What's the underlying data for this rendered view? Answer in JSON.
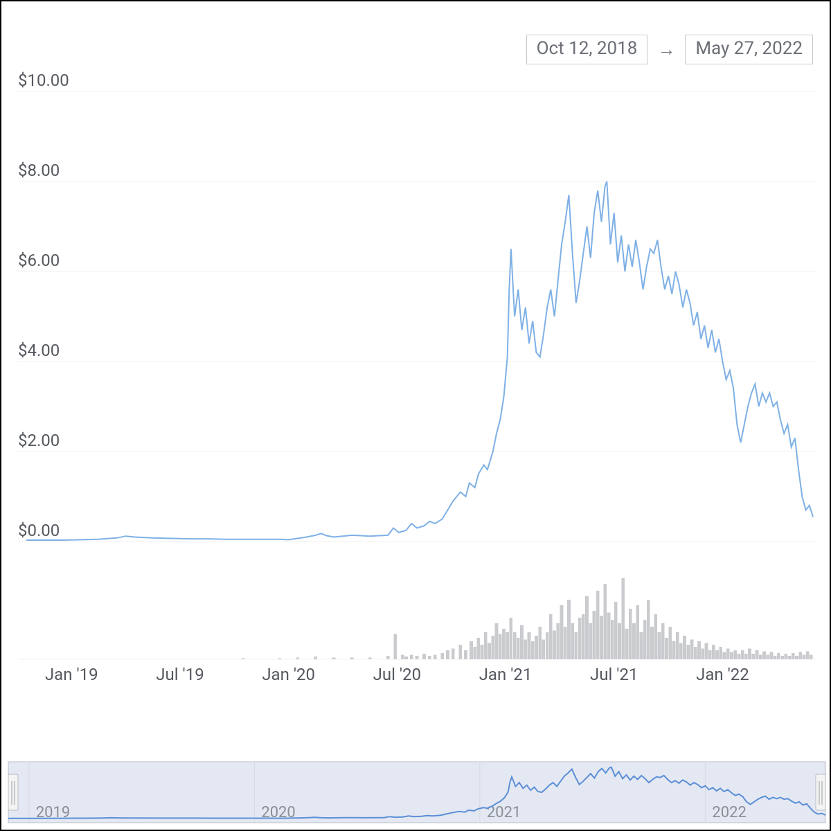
{
  "date_range": {
    "start": "Oct 12, 2018",
    "end": "May 27, 2022"
  },
  "colors": {
    "line": "#7eb0e6",
    "mini_line": "#5b8fd6",
    "grid": "#f0f0f0",
    "axis_text": "#54585e",
    "volume": "#c9cbce",
    "nav_mask": "#b7c3e0",
    "nav_mask_opacity": 0.38,
    "nav_border": "#b9bcc0",
    "nav_year_text": "#8a8e95",
    "background": "#ffffff"
  },
  "price_chart": {
    "type": "line",
    "ylim": [
      0,
      10
    ],
    "ytick_step": 2,
    "ytick_prefix": "$",
    "ytick_decimals": 2,
    "yticks": [
      0,
      2,
      4,
      6,
      8,
      10
    ],
    "x_start": 0,
    "x_end": 43.5,
    "xticks": [
      {
        "x": 2.5,
        "label": "Jan '19"
      },
      {
        "x": 8.5,
        "label": "Jul '19"
      },
      {
        "x": 14.5,
        "label": "Jan '20"
      },
      {
        "x": 20.5,
        "label": "Jul '20"
      },
      {
        "x": 26.5,
        "label": "Jan '21"
      },
      {
        "x": 32.5,
        "label": "Jul '21"
      },
      {
        "x": 38.5,
        "label": "Jan '22"
      }
    ],
    "series": [
      [
        0,
        0.03
      ],
      [
        1,
        0.03
      ],
      [
        2,
        0.03
      ],
      [
        3,
        0.04
      ],
      [
        4,
        0.05
      ],
      [
        5,
        0.08
      ],
      [
        5.5,
        0.12
      ],
      [
        6,
        0.1
      ],
      [
        6.5,
        0.09
      ],
      [
        7,
        0.08
      ],
      [
        8,
        0.07
      ],
      [
        9,
        0.06
      ],
      [
        10,
        0.06
      ],
      [
        11,
        0.05
      ],
      [
        12,
        0.05
      ],
      [
        13,
        0.05
      ],
      [
        14,
        0.05
      ],
      [
        14.5,
        0.04
      ],
      [
        15,
        0.07
      ],
      [
        15.5,
        0.1
      ],
      [
        16,
        0.14
      ],
      [
        16.3,
        0.18
      ],
      [
        16.6,
        0.13
      ],
      [
        17,
        0.1
      ],
      [
        17.5,
        0.12
      ],
      [
        18,
        0.14
      ],
      [
        18.5,
        0.13
      ],
      [
        19,
        0.12
      ],
      [
        19.5,
        0.13
      ],
      [
        20,
        0.14
      ],
      [
        20.3,
        0.3
      ],
      [
        20.6,
        0.2
      ],
      [
        21,
        0.25
      ],
      [
        21.3,
        0.4
      ],
      [
        21.6,
        0.3
      ],
      [
        22,
        0.35
      ],
      [
        22.3,
        0.45
      ],
      [
        22.6,
        0.4
      ],
      [
        23,
        0.5
      ],
      [
        23.3,
        0.7
      ],
      [
        23.6,
        0.9
      ],
      [
        24,
        1.1
      ],
      [
        24.3,
        1.0
      ],
      [
        24.5,
        1.3
      ],
      [
        24.8,
        1.2
      ],
      [
        25,
        1.5
      ],
      [
        25.3,
        1.7
      ],
      [
        25.5,
        1.6
      ],
      [
        25.8,
        2.0
      ],
      [
        26,
        2.4
      ],
      [
        26.2,
        2.7
      ],
      [
        26.4,
        3.2
      ],
      [
        26.6,
        4.1
      ],
      [
        26.7,
        5.6
      ],
      [
        26.8,
        6.5
      ],
      [
        27.0,
        5.0
      ],
      [
        27.2,
        5.6
      ],
      [
        27.4,
        4.7
      ],
      [
        27.6,
        5.2
      ],
      [
        27.8,
        4.4
      ],
      [
        28,
        4.9
      ],
      [
        28.2,
        4.2
      ],
      [
        28.4,
        4.1
      ],
      [
        28.6,
        4.6
      ],
      [
        28.8,
        5.2
      ],
      [
        29.0,
        5.6
      ],
      [
        29.2,
        5.0
      ],
      [
        29.4,
        5.8
      ],
      [
        29.6,
        6.6
      ],
      [
        29.8,
        7.1
      ],
      [
        30.0,
        7.7
      ],
      [
        30.2,
        6.4
      ],
      [
        30.4,
        5.3
      ],
      [
        30.6,
        5.8
      ],
      [
        30.8,
        6.4
      ],
      [
        31.0,
        7.0
      ],
      [
        31.2,
        6.3
      ],
      [
        31.4,
        7.3
      ],
      [
        31.6,
        7.8
      ],
      [
        31.8,
        7.1
      ],
      [
        32.0,
        7.9
      ],
      [
        32.1,
        8.0
      ],
      [
        32.3,
        6.6
      ],
      [
        32.5,
        7.3
      ],
      [
        32.7,
        6.2
      ],
      [
        32.9,
        6.8
      ],
      [
        33.1,
        6.0
      ],
      [
        33.3,
        6.6
      ],
      [
        33.5,
        6.1
      ],
      [
        33.7,
        6.7
      ],
      [
        33.9,
        6.2
      ],
      [
        34.1,
        5.6
      ],
      [
        34.3,
        6.1
      ],
      [
        34.5,
        6.5
      ],
      [
        34.7,
        6.4
      ],
      [
        34.9,
        6.7
      ],
      [
        35.1,
        6.1
      ],
      [
        35.3,
        5.6
      ],
      [
        35.5,
        5.9
      ],
      [
        35.7,
        5.5
      ],
      [
        35.9,
        6.0
      ],
      [
        36.1,
        5.7
      ],
      [
        36.3,
        5.2
      ],
      [
        36.5,
        5.6
      ],
      [
        36.7,
        5.3
      ],
      [
        36.9,
        4.8
      ],
      [
        37.1,
        5.1
      ],
      [
        37.3,
        4.5
      ],
      [
        37.5,
        4.8
      ],
      [
        37.7,
        4.3
      ],
      [
        37.9,
        4.7
      ],
      [
        38.1,
        4.2
      ],
      [
        38.3,
        4.5
      ],
      [
        38.5,
        4.0
      ],
      [
        38.7,
        3.6
      ],
      [
        38.9,
        3.8
      ],
      [
        39.1,
        3.4
      ],
      [
        39.3,
        2.6
      ],
      [
        39.5,
        2.2
      ],
      [
        39.7,
        2.6
      ],
      [
        39.9,
        3.0
      ],
      [
        40.1,
        3.3
      ],
      [
        40.3,
        3.5
      ],
      [
        40.5,
        3.0
      ],
      [
        40.7,
        3.3
      ],
      [
        40.9,
        3.1
      ],
      [
        41.1,
        3.3
      ],
      [
        41.3,
        3.0
      ],
      [
        41.5,
        3.1
      ],
      [
        41.7,
        2.7
      ],
      [
        41.9,
        2.4
      ],
      [
        42.1,
        2.6
      ],
      [
        42.3,
        2.1
      ],
      [
        42.5,
        2.3
      ],
      [
        42.7,
        1.6
      ],
      [
        42.9,
        1.0
      ],
      [
        43.1,
        0.7
      ],
      [
        43.3,
        0.8
      ],
      [
        43.5,
        0.55
      ]
    ],
    "line_color": "#7eb0e6",
    "line_width": 2
  },
  "volume_chart": {
    "type": "bar",
    "ylim": [
      0,
      1
    ],
    "bar_color": "#c9cbce",
    "bars": [
      [
        12,
        0.01
      ],
      [
        14,
        0.01
      ],
      [
        15,
        0.02
      ],
      [
        16,
        0.03
      ],
      [
        17,
        0.02
      ],
      [
        18,
        0.02
      ],
      [
        19,
        0.02
      ],
      [
        20,
        0.04
      ],
      [
        20.4,
        0.28
      ],
      [
        20.8,
        0.05
      ],
      [
        21,
        0.03
      ],
      [
        21.3,
        0.05
      ],
      [
        21.6,
        0.04
      ],
      [
        22,
        0.06
      ],
      [
        22.3,
        0.04
      ],
      [
        22.6,
        0.05
      ],
      [
        23,
        0.07
      ],
      [
        23.3,
        0.1
      ],
      [
        23.6,
        0.12
      ],
      [
        24,
        0.16
      ],
      [
        24.3,
        0.1
      ],
      [
        24.6,
        0.2
      ],
      [
        24.8,
        0.14
      ],
      [
        25,
        0.24
      ],
      [
        25.2,
        0.16
      ],
      [
        25.4,
        0.3
      ],
      [
        25.6,
        0.18
      ],
      [
        25.8,
        0.26
      ],
      [
        26,
        0.4
      ],
      [
        26.2,
        0.28
      ],
      [
        26.4,
        0.34
      ],
      [
        26.6,
        0.3
      ],
      [
        26.8,
        0.46
      ],
      [
        27.0,
        0.3
      ],
      [
        27.2,
        0.24
      ],
      [
        27.4,
        0.38
      ],
      [
        27.6,
        0.22
      ],
      [
        27.8,
        0.3
      ],
      [
        28.0,
        0.2
      ],
      [
        28.2,
        0.26
      ],
      [
        28.4,
        0.36
      ],
      [
        28.6,
        0.22
      ],
      [
        28.8,
        0.3
      ],
      [
        29.0,
        0.5
      ],
      [
        29.2,
        0.32
      ],
      [
        29.4,
        0.4
      ],
      [
        29.6,
        0.6
      ],
      [
        29.8,
        0.36
      ],
      [
        30.0,
        0.66
      ],
      [
        30.2,
        0.4
      ],
      [
        30.4,
        0.3
      ],
      [
        30.6,
        0.46
      ],
      [
        30.8,
        0.5
      ],
      [
        31.0,
        0.7
      ],
      [
        31.2,
        0.4
      ],
      [
        31.4,
        0.54
      ],
      [
        31.6,
        0.76
      ],
      [
        31.8,
        0.48
      ],
      [
        32.0,
        0.84
      ],
      [
        32.2,
        0.52
      ],
      [
        32.4,
        0.44
      ],
      [
        32.6,
        0.64
      ],
      [
        32.8,
        0.4
      ],
      [
        33.0,
        0.9
      ],
      [
        33.2,
        0.34
      ],
      [
        33.4,
        0.56
      ],
      [
        33.6,
        0.4
      ],
      [
        33.8,
        0.6
      ],
      [
        34.0,
        0.3
      ],
      [
        34.2,
        0.44
      ],
      [
        34.4,
        0.66
      ],
      [
        34.6,
        0.36
      ],
      [
        34.8,
        0.5
      ],
      [
        35.0,
        0.3
      ],
      [
        35.2,
        0.4
      ],
      [
        35.4,
        0.24
      ],
      [
        35.6,
        0.36
      ],
      [
        35.8,
        0.2
      ],
      [
        36.0,
        0.3
      ],
      [
        36.2,
        0.18
      ],
      [
        36.4,
        0.26
      ],
      [
        36.6,
        0.16
      ],
      [
        36.8,
        0.22
      ],
      [
        37.0,
        0.14
      ],
      [
        37.2,
        0.2
      ],
      [
        37.4,
        0.12
      ],
      [
        37.6,
        0.18
      ],
      [
        37.8,
        0.1
      ],
      [
        38.0,
        0.16
      ],
      [
        38.2,
        0.1
      ],
      [
        38.4,
        0.14
      ],
      [
        38.6,
        0.08
      ],
      [
        38.8,
        0.12
      ],
      [
        39.0,
        0.08
      ],
      [
        39.2,
        0.1
      ],
      [
        39.4,
        0.06
      ],
      [
        39.6,
        0.1
      ],
      [
        39.8,
        0.06
      ],
      [
        40.0,
        0.12
      ],
      [
        40.2,
        0.06
      ],
      [
        40.4,
        0.1
      ],
      [
        40.6,
        0.05
      ],
      [
        40.8,
        0.09
      ],
      [
        41.0,
        0.05
      ],
      [
        41.2,
        0.08
      ],
      [
        41.4,
        0.04
      ],
      [
        41.6,
        0.07
      ],
      [
        41.8,
        0.04
      ],
      [
        42.0,
        0.06
      ],
      [
        42.2,
        0.04
      ],
      [
        42.4,
        0.07
      ],
      [
        42.6,
        0.04
      ],
      [
        42.8,
        0.08
      ],
      [
        43.0,
        0.05
      ],
      [
        43.2,
        0.09
      ],
      [
        43.4,
        0.05
      ]
    ]
  },
  "navigator": {
    "years": [
      {
        "x": 2.5,
        "label": "2019"
      },
      {
        "x": 14.5,
        "label": "2020"
      },
      {
        "x": 26.5,
        "label": "2021"
      },
      {
        "x": 38.5,
        "label": "2022"
      }
    ],
    "mask_color": "#b7c3e0",
    "mask_opacity": 0.38,
    "line_color": "#5b8fd6"
  }
}
